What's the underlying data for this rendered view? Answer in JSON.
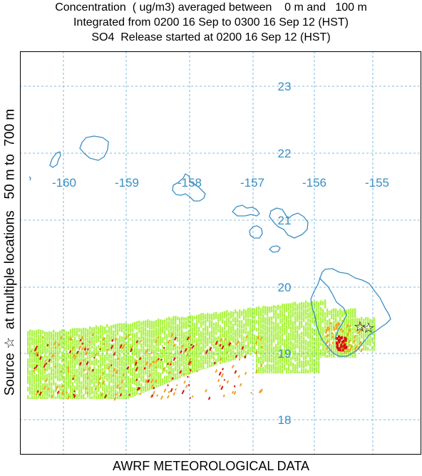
{
  "title": {
    "line1": "Concentration  ( ug/m3) averaged between    0 m and   100 m",
    "line2": "Integrated from 0200 16 Sep to 0300 16 Sep 12 (HST)",
    "line3": "SO4  Release started at 0200 16 Sep 12 (HST)"
  },
  "side_label": "Source ☆  at multiple locations   50 m to  700 m",
  "footer": "AWRF METEOROLOGICAL DATA",
  "map": {
    "longitude_labels": [
      "-160",
      "-159",
      "-158",
      "-157",
      "-156",
      "-155"
    ],
    "latitude_labels": [
      "23",
      "22",
      "21",
      "20",
      "19",
      "18"
    ],
    "grid_color": "#5aa8d8",
    "coast_color": "#3a8fc2",
    "label_color": "#3a8fc2",
    "plume_colors": {
      "low": "#aef34a",
      "mid": "#f0a020",
      "high": "#d81010"
    },
    "source_marker": "star-icon",
    "source_count": 2
  }
}
